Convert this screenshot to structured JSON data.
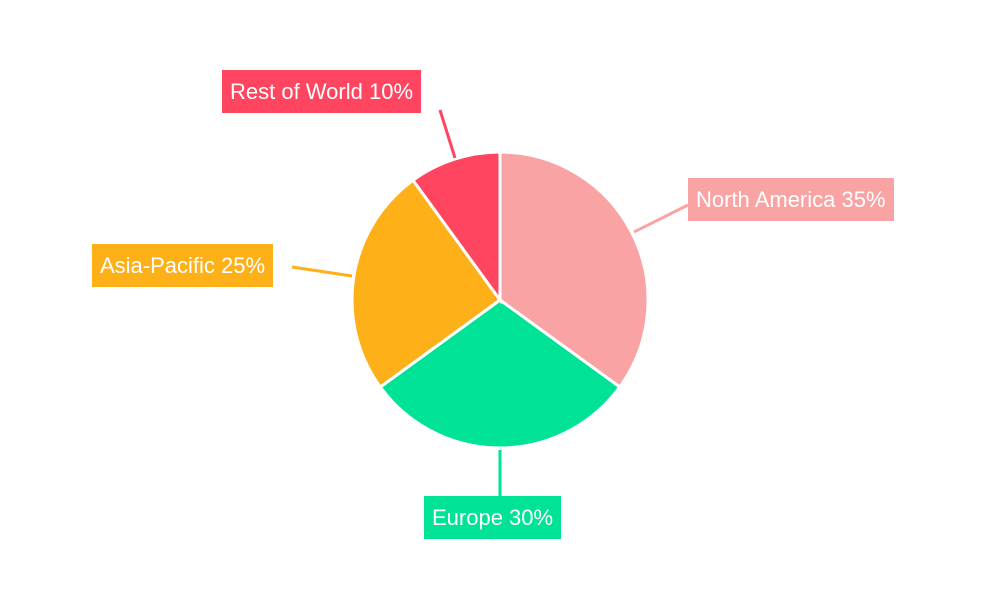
{
  "chart_data": {
    "type": "pie",
    "title": "",
    "slices": [
      {
        "label": "North America",
        "value": 35,
        "display": "North America 35%",
        "color": "#F9A3A4"
      },
      {
        "label": "Europe",
        "value": 30,
        "display": "Europe 30%",
        "color": "#00E396"
      },
      {
        "label": "Asia-Pacific",
        "value": 25,
        "display": "Asia-Pacific 25%",
        "color": "#FEB019"
      },
      {
        "label": "Rest of World",
        "value": 10,
        "display": "Rest of World 10%",
        "color": "#FF4560"
      }
    ],
    "start_angle": "top",
    "direction": "clockwise",
    "legend": "none"
  }
}
